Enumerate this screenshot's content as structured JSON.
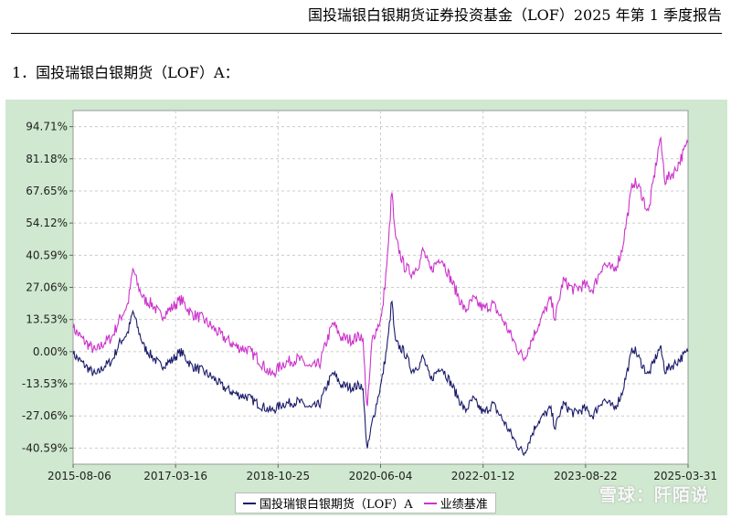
{
  "header": {
    "title": "国投瑞银白银期货证券投资基金（LOF）2025 年第 1 季度报告"
  },
  "section": {
    "title": "1．国投瑞银白银期货（LOF）A："
  },
  "watermark": "雪球：阡陌说",
  "colors": {
    "fund": "#1b1b6b",
    "benchmark": "#cc33cc",
    "plot_bg": "#ffffff",
    "frame_bg": "#cfe8cf",
    "grid": "#cccccc"
  },
  "chart_data": {
    "type": "line",
    "x_ticks": [
      "2015-08-06",
      "2017-03-16",
      "2018-10-25",
      "2020-06-04",
      "2022-01-12",
      "2023-08-22",
      "2025-03-31"
    ],
    "y_ticks": [
      "94.71%",
      "81.18%",
      "67.65%",
      "54.12%",
      "40.59%",
      "27.06%",
      "13.53%",
      "0.00%",
      "-13.53%",
      "-27.06%",
      "-40.59%"
    ],
    "ylim": [
      -47.36,
      101.48
    ],
    "x_range": [
      "2015-08-06",
      "2025-03-31"
    ],
    "grid": true,
    "legend_position": "bottom-center",
    "series": [
      {
        "name": "国投瑞银白银期货（LOF）A",
        "points": [
          [
            "2015-08-06",
            -1
          ],
          [
            "2015-10-01",
            -5
          ],
          [
            "2015-12-15",
            -10
          ],
          [
            "2016-02-01",
            -6
          ],
          [
            "2016-03-15",
            -4
          ],
          [
            "2016-05-01",
            4
          ],
          [
            "2016-06-15",
            8
          ],
          [
            "2016-07-15",
            17
          ],
          [
            "2016-08-10",
            10
          ],
          [
            "2016-09-15",
            2
          ],
          [
            "2016-11-01",
            -2
          ],
          [
            "2016-12-20",
            -6
          ],
          [
            "2017-02-15",
            -4
          ],
          [
            "2017-04-15",
            0
          ],
          [
            "2017-06-15",
            -6
          ],
          [
            "2017-08-15",
            -8
          ],
          [
            "2017-10-15",
            -11
          ],
          [
            "2017-12-15",
            -15
          ],
          [
            "2018-03-01",
            -18
          ],
          [
            "2018-05-01",
            -19
          ],
          [
            "2018-07-01",
            -22
          ],
          [
            "2018-09-15",
            -25
          ],
          [
            "2018-11-20",
            -22
          ],
          [
            "2019-02-15",
            -21
          ],
          [
            "2019-05-01",
            -24
          ],
          [
            "2019-06-20",
            -22
          ],
          [
            "2019-08-01",
            -14
          ],
          [
            "2019-09-05",
            -9
          ],
          [
            "2019-10-20",
            -14
          ],
          [
            "2019-12-15",
            -15
          ],
          [
            "2020-02-20",
            -14
          ],
          [
            "2020-03-18",
            -42
          ],
          [
            "2020-04-15",
            -30
          ],
          [
            "2020-06-10",
            -12
          ],
          [
            "2020-07-15",
            5
          ],
          [
            "2020-08-06",
            22
          ],
          [
            "2020-08-25",
            4
          ],
          [
            "2020-10-15",
            0
          ],
          [
            "2020-12-01",
            -8
          ],
          [
            "2021-01-15",
            -5
          ],
          [
            "2021-02-01",
            -2
          ],
          [
            "2021-03-15",
            -12
          ],
          [
            "2021-05-15",
            -6
          ],
          [
            "2021-07-01",
            -12
          ],
          [
            "2021-09-30",
            -25
          ],
          [
            "2021-11-15",
            -20
          ],
          [
            "2022-01-15",
            -26
          ],
          [
            "2022-03-08",
            -22
          ],
          [
            "2022-05-15",
            -30
          ],
          [
            "2022-07-15",
            -38
          ],
          [
            "2022-09-01",
            -43
          ],
          [
            "2022-11-15",
            -30
          ],
          [
            "2023-02-01",
            -24
          ],
          [
            "2023-03-01",
            -32
          ],
          [
            "2023-04-15",
            -22
          ],
          [
            "2023-06-15",
            -26
          ],
          [
            "2023-08-15",
            -24
          ],
          [
            "2023-10-01",
            -27
          ],
          [
            "2023-12-01",
            -20
          ],
          [
            "2024-02-01",
            -24
          ],
          [
            "2024-03-15",
            -18
          ],
          [
            "2024-05-20",
            2
          ],
          [
            "2024-07-01",
            -4
          ],
          [
            "2024-08-15",
            -10
          ],
          [
            "2024-10-22",
            2
          ],
          [
            "2024-11-20",
            -8
          ],
          [
            "2025-01-15",
            -5
          ],
          [
            "2025-03-31",
            0
          ]
        ]
      },
      {
        "name": "业绩基准",
        "points": [
          [
            "2015-08-06",
            10
          ],
          [
            "2015-10-01",
            5
          ],
          [
            "2015-12-15",
            0
          ],
          [
            "2016-02-01",
            4
          ],
          [
            "2016-03-15",
            6
          ],
          [
            "2016-05-01",
            14
          ],
          [
            "2016-06-15",
            20
          ],
          [
            "2016-07-15",
            35
          ],
          [
            "2016-08-10",
            28
          ],
          [
            "2016-09-15",
            22
          ],
          [
            "2016-11-01",
            20
          ],
          [
            "2016-12-20",
            15
          ],
          [
            "2017-02-15",
            18
          ],
          [
            "2017-04-15",
            22
          ],
          [
            "2017-06-15",
            16
          ],
          [
            "2017-08-15",
            14
          ],
          [
            "2017-10-15",
            10
          ],
          [
            "2017-12-15",
            6
          ],
          [
            "2018-03-01",
            2
          ],
          [
            "2018-05-01",
            1
          ],
          [
            "2018-07-01",
            -3
          ],
          [
            "2018-09-15",
            -10
          ],
          [
            "2018-11-20",
            -5
          ],
          [
            "2019-02-15",
            -3
          ],
          [
            "2019-05-01",
            -7
          ],
          [
            "2019-06-20",
            -5
          ],
          [
            "2019-08-01",
            5
          ],
          [
            "2019-09-05",
            12
          ],
          [
            "2019-10-20",
            6
          ],
          [
            "2019-12-15",
            5
          ],
          [
            "2020-02-20",
            7
          ],
          [
            "2020-03-18",
            -25
          ],
          [
            "2020-04-15",
            5
          ],
          [
            "2020-06-10",
            15
          ],
          [
            "2020-07-15",
            42
          ],
          [
            "2020-08-06",
            68
          ],
          [
            "2020-08-25",
            48
          ],
          [
            "2020-10-15",
            36
          ],
          [
            "2020-12-01",
            33
          ],
          [
            "2021-01-15",
            38
          ],
          [
            "2021-02-01",
            43
          ],
          [
            "2021-03-15",
            34
          ],
          [
            "2021-05-15",
            40
          ],
          [
            "2021-07-01",
            32
          ],
          [
            "2021-09-30",
            17
          ],
          [
            "2021-11-15",
            22
          ],
          [
            "2022-01-15",
            18
          ],
          [
            "2022-03-08",
            20
          ],
          [
            "2022-05-15",
            12
          ],
          [
            "2022-07-15",
            3
          ],
          [
            "2022-09-01",
            -3
          ],
          [
            "2022-11-15",
            10
          ],
          [
            "2023-02-01",
            22
          ],
          [
            "2023-03-01",
            14
          ],
          [
            "2023-04-15",
            30
          ],
          [
            "2023-06-15",
            26
          ],
          [
            "2023-08-15",
            28
          ],
          [
            "2023-10-01",
            26
          ],
          [
            "2023-12-01",
            37
          ],
          [
            "2024-02-01",
            34
          ],
          [
            "2024-03-15",
            42
          ],
          [
            "2024-05-20",
            72
          ],
          [
            "2024-07-01",
            68
          ],
          [
            "2024-08-15",
            58
          ],
          [
            "2024-10-22",
            90
          ],
          [
            "2024-11-20",
            72
          ],
          [
            "2025-01-15",
            76
          ],
          [
            "2025-03-31",
            88
          ]
        ]
      }
    ]
  }
}
